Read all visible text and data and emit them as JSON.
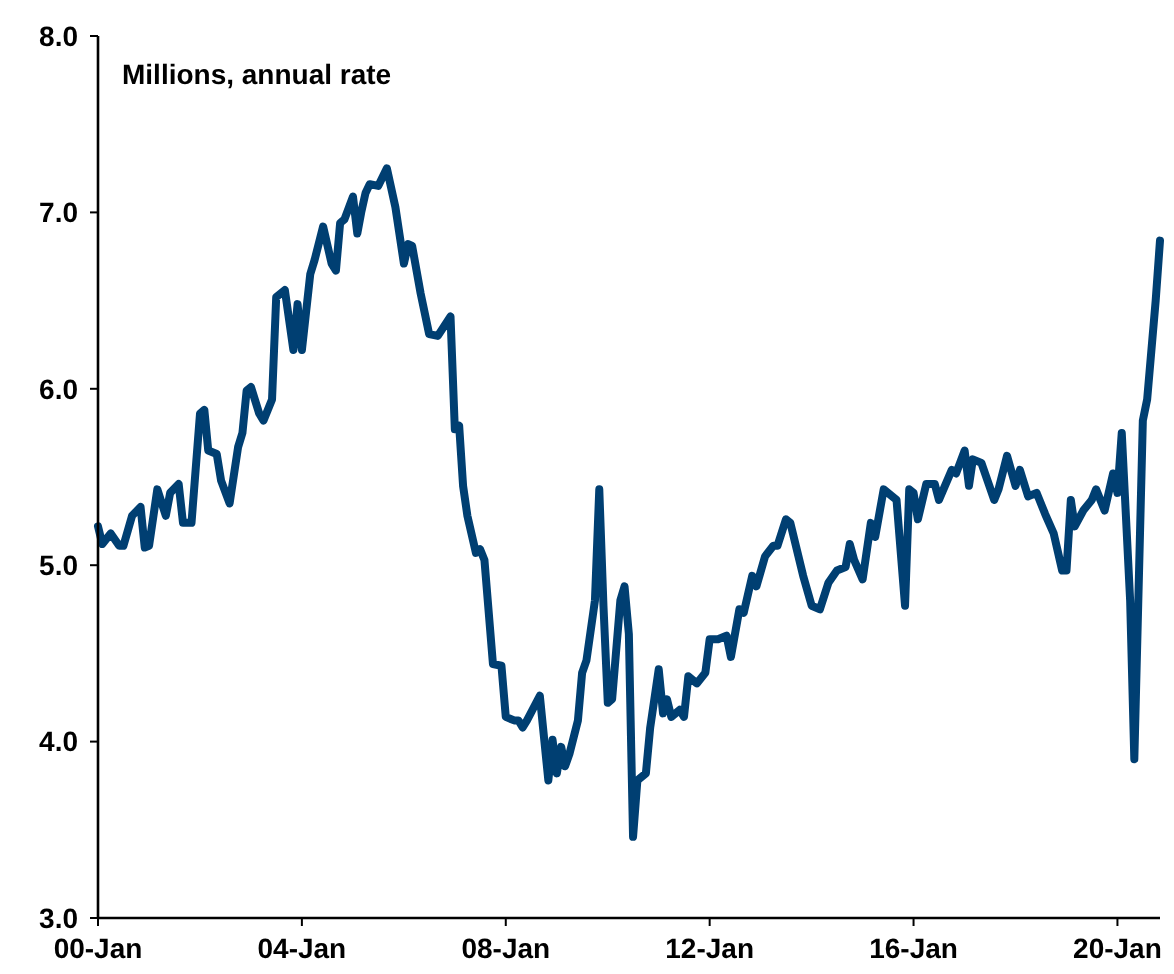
{
  "chart_data": {
    "type": "line",
    "ylabel": "Millions, annual rate",
    "xlim": [
      "2000-01",
      "2020-11"
    ],
    "xticks": [
      {
        "value": "2000-01",
        "label": "00-Jan"
      },
      {
        "value": "2004-01",
        "label": "04-Jan"
      },
      {
        "value": "2008-01",
        "label": "08-Jan"
      },
      {
        "value": "2012-01",
        "label": "12-Jan"
      },
      {
        "value": "2016-01",
        "label": "16-Jan"
      },
      {
        "value": "2020-01",
        "label": "20-Jan"
      }
    ],
    "ylim": [
      3,
      8
    ],
    "yticks": [
      {
        "value": 3,
        "label": "3.0"
      },
      {
        "value": 4,
        "label": "4.0"
      },
      {
        "value": 5,
        "label": "5.0"
      },
      {
        "value": 6,
        "label": "6.0"
      },
      {
        "value": 7,
        "label": "7.0"
      },
      {
        "value": 8,
        "label": "8.0"
      }
    ],
    "grid": false,
    "marker": "none",
    "line_style": "solid",
    "series": [
      {
        "color": "#003f72",
        "x": [
          "2000-01",
          "2000-02",
          "2000-04",
          "2000-06",
          "2000-07",
          "2000-09",
          "2000-11",
          "2000-12",
          "2001-01",
          "2001-03",
          "2001-05",
          "2001-06",
          "2001-08",
          "2001-09",
          "2001-11",
          "2002-01",
          "2002-02",
          "2002-03",
          "2002-05",
          "2002-06",
          "2002-08",
          "2002-10",
          "2002-11",
          "2002-12",
          "2003-01",
          "2003-03",
          "2003-04",
          "2003-06",
          "2003-07",
          "2003-09",
          "2003-11",
          "2003-12",
          "2004-01",
          "2004-03",
          "2004-04",
          "2004-06",
          "2004-08",
          "2004-09",
          "2004-10",
          "2004-11",
          "2005-01",
          "2005-02",
          "2005-03",
          "2005-04",
          "2005-05",
          "2005-07",
          "2005-09",
          "2005-11",
          "2006-01",
          "2006-02",
          "2006-03",
          "2006-05",
          "2006-07",
          "2006-09",
          "2006-12",
          "2007-01",
          "2007-02",
          "2007-03",
          "2007-04",
          "2007-06",
          "2007-07",
          "2007-08",
          "2007-10",
          "2007-12",
          "2008-01",
          "2008-03",
          "2008-04",
          "2008-05",
          "2008-06",
          "2008-09",
          "2008-11",
          "2008-12",
          "2009-01",
          "2009-02",
          "2009-03",
          "2009-04",
          "2009-06",
          "2009-07",
          "2009-08",
          "2009-10",
          "2009-11",
          "2009-12",
          "2010-01",
          "2010-02",
          "2010-04",
          "2010-05",
          "2010-06",
          "2010-07",
          "2010-08",
          "2010-10",
          "2010-11",
          "2011-01",
          "2011-02",
          "2011-03",
          "2011-04",
          "2011-06",
          "2011-07",
          "2011-08",
          "2011-10",
          "2011-12",
          "2012-01",
          "2012-03",
          "2012-05",
          "2012-06",
          "2012-08",
          "2012-09",
          "2012-11",
          "2012-12",
          "2013-02",
          "2013-04",
          "2013-05",
          "2013-07",
          "2013-08",
          "2013-11",
          "2014-01",
          "2014-03",
          "2014-05",
          "2014-07",
          "2014-09",
          "2014-10",
          "2014-11",
          "2015-01",
          "2015-03",
          "2015-04",
          "2015-06",
          "2015-08",
          "2015-09",
          "2015-11",
          "2015-12",
          "2016-01",
          "2016-02",
          "2016-04",
          "2016-06",
          "2016-07",
          "2016-10",
          "2016-11",
          "2017-01",
          "2017-02",
          "2017-03",
          "2017-05",
          "2017-08",
          "2017-09",
          "2017-11",
          "2018-01",
          "2018-02",
          "2018-04",
          "2018-06",
          "2018-08",
          "2018-10",
          "2018-12",
          "2019-01",
          "2019-02",
          "2019-03",
          "2019-05",
          "2019-07",
          "2019-08",
          "2019-10",
          "2019-12",
          "2020-01",
          "2020-02",
          "2020-04",
          "2020-05",
          "2020-07",
          "2020-08",
          "2020-10",
          "2020-11"
        ],
        "values": [
          5.22,
          5.12,
          5.18,
          5.11,
          5.11,
          5.28,
          5.33,
          5.1,
          5.11,
          5.43,
          5.28,
          5.41,
          5.46,
          5.24,
          5.24,
          5.86,
          5.88,
          5.65,
          5.63,
          5.48,
          5.35,
          5.67,
          5.75,
          5.99,
          6.01,
          5.86,
          5.82,
          5.94,
          6.52,
          6.56,
          6.22,
          6.48,
          6.22,
          6.65,
          6.73,
          6.92,
          6.71,
          6.67,
          6.94,
          6.96,
          7.09,
          6.88,
          7.0,
          7.11,
          7.16,
          7.15,
          7.25,
          7.03,
          6.71,
          6.82,
          6.81,
          6.54,
          6.31,
          6.3,
          6.41,
          5.77,
          5.79,
          5.45,
          5.28,
          5.07,
          5.09,
          5.03,
          4.44,
          4.43,
          4.14,
          4.12,
          4.12,
          4.08,
          4.12,
          4.26,
          3.78,
          4.01,
          3.82,
          3.97,
          3.86,
          3.93,
          4.12,
          4.39,
          4.46,
          4.8,
          5.43,
          4.77,
          4.22,
          4.24,
          4.8,
          4.88,
          4.61,
          3.46,
          3.78,
          3.82,
          4.08,
          4.41,
          4.16,
          4.24,
          4.14,
          4.18,
          4.14,
          4.37,
          4.33,
          4.39,
          4.58,
          4.58,
          4.6,
          4.48,
          4.75,
          4.73,
          4.94,
          4.88,
          5.05,
          5.11,
          5.11,
          5.26,
          5.24,
          4.94,
          4.77,
          4.75,
          4.9,
          4.97,
          4.99,
          5.12,
          5.03,
          4.92,
          5.24,
          5.16,
          5.43,
          5.39,
          5.37,
          4.77,
          5.43,
          5.41,
          5.26,
          5.46,
          5.46,
          5.37,
          5.54,
          5.52,
          5.65,
          5.45,
          5.6,
          5.58,
          5.37,
          5.43,
          5.62,
          5.45,
          5.54,
          5.39,
          5.41,
          5.29,
          5.18,
          4.97,
          4.97,
          5.37,
          5.22,
          5.31,
          5.37,
          5.43,
          5.31,
          5.52,
          5.41,
          5.75,
          4.8,
          3.9,
          5.82,
          5.94,
          6.5,
          6.84
        ]
      }
    ]
  }
}
